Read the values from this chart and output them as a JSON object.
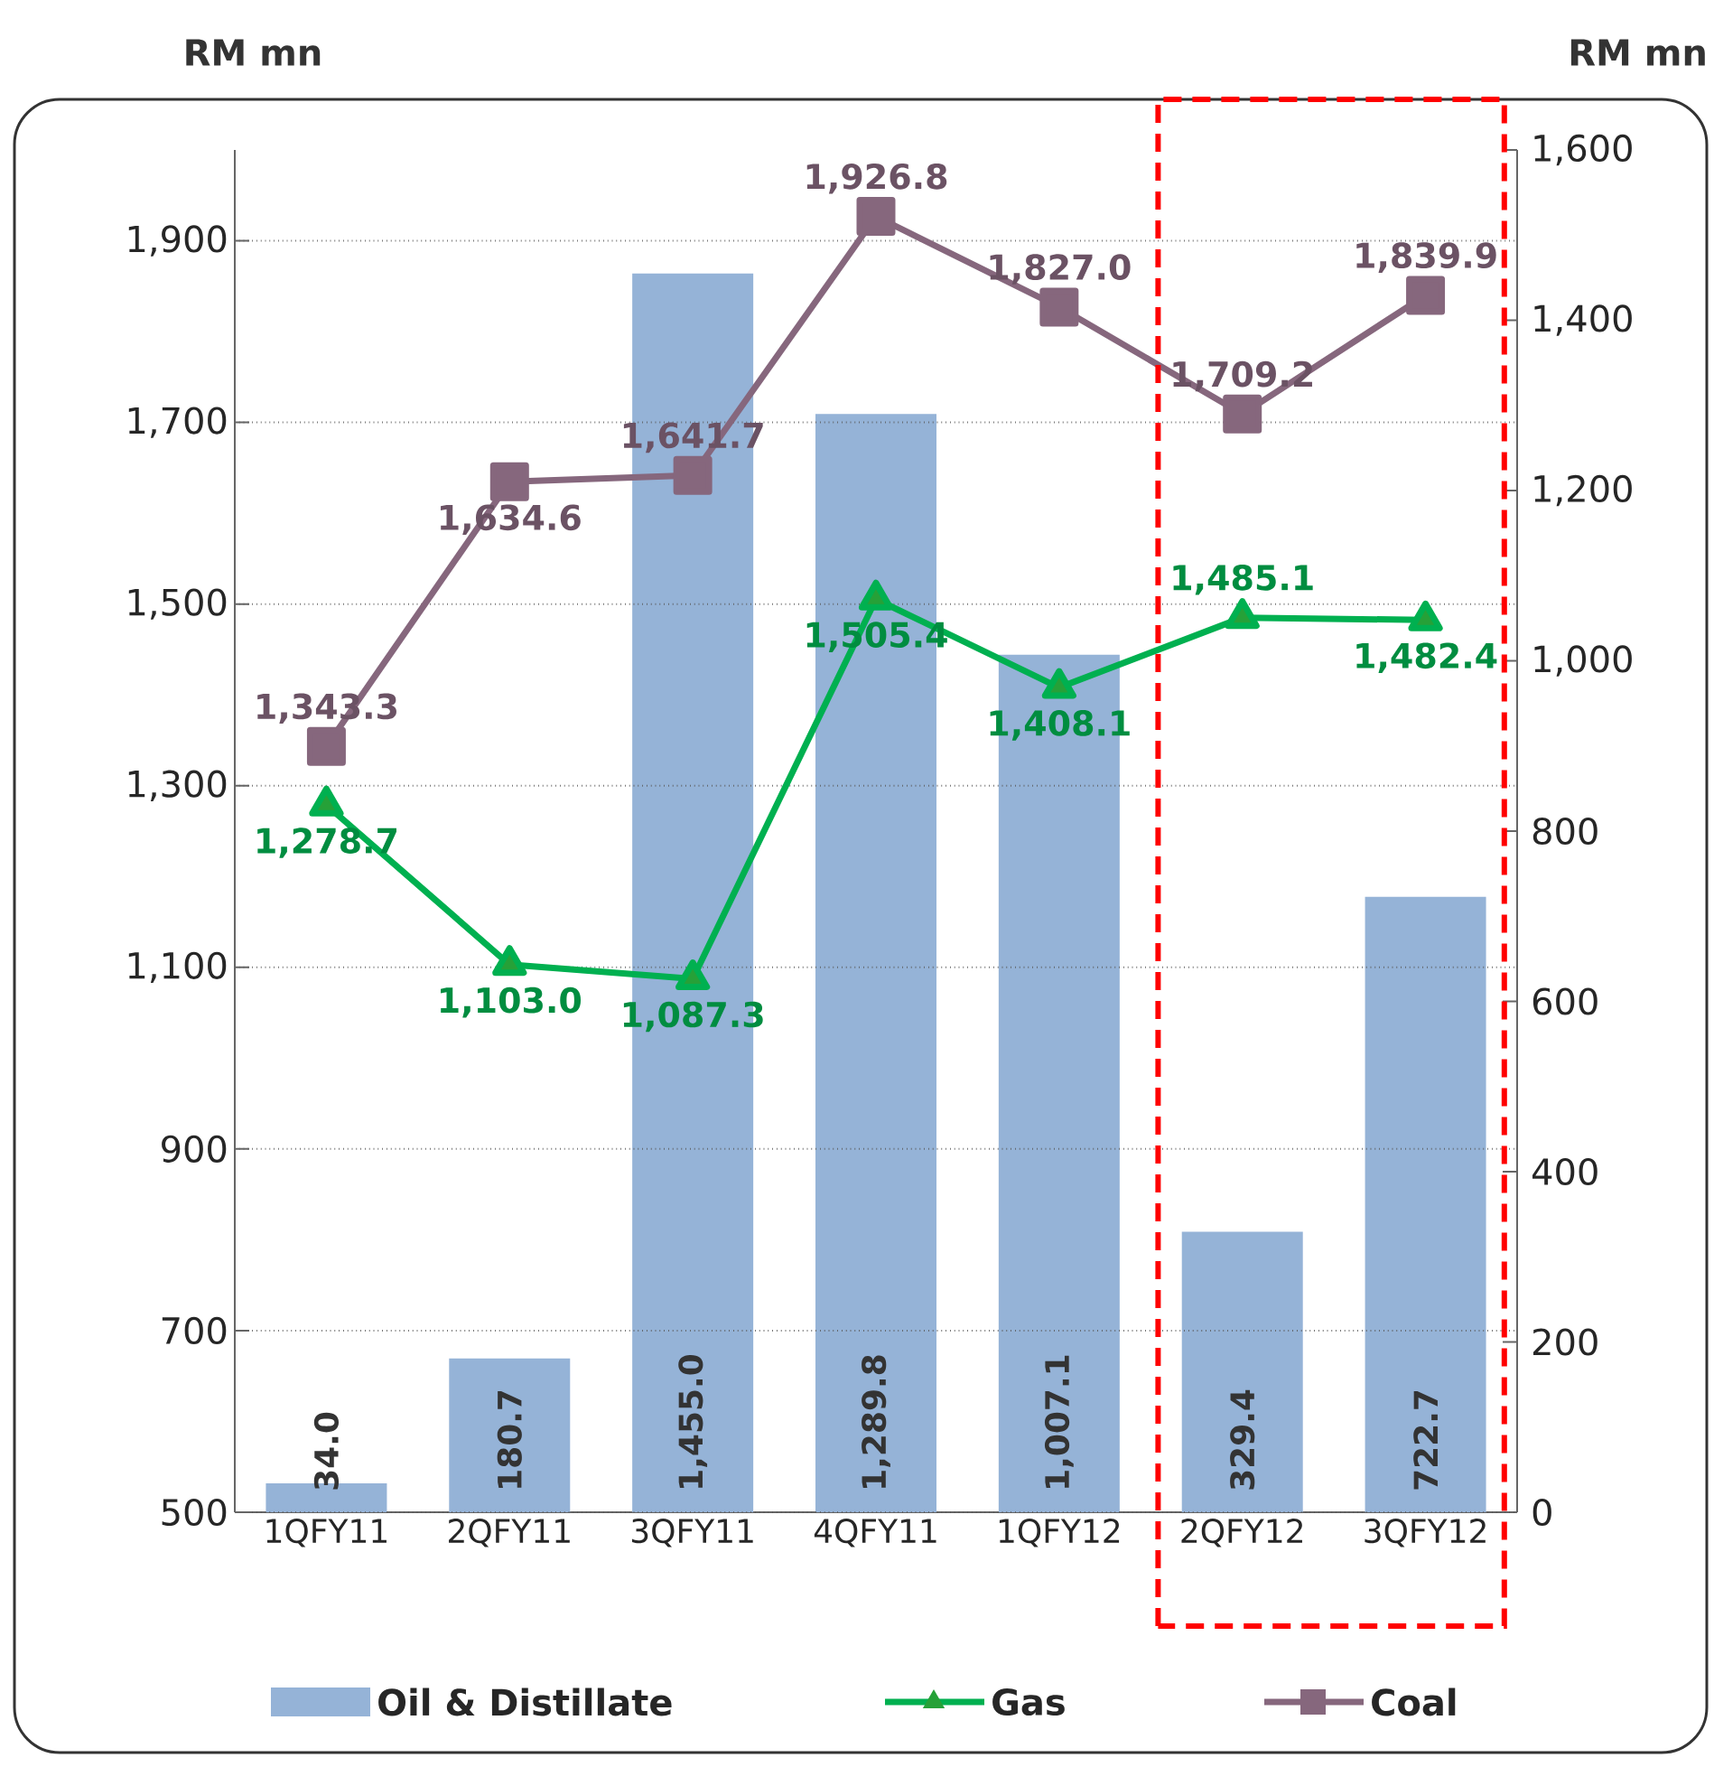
{
  "chart_data": {
    "type": "bar",
    "ylabel": "RM mn",
    "y2label": "RM mn",
    "categories": [
      "1QFY11",
      "2QFY11",
      "3QFY11",
      "4QFY11",
      "1QFY12",
      "2QFY12",
      "3QFY12"
    ],
    "series": [
      {
        "name": "Oil & Distillate",
        "axis": "y2",
        "color": "#95b3d7",
        "values": [
          34.0,
          180.7,
          1455.0,
          1289.8,
          1007.1,
          329.4,
          722.7
        ],
        "value_labels": [
          "34.0",
          "180.7",
          "1,455.0",
          "1,289.8",
          "1,007.1",
          "329.4",
          "722.7"
        ]
      },
      {
        "name": "Gas",
        "type": "line",
        "axis": "y",
        "color": "#00b050",
        "marker": "triangle",
        "values": [
          1278.7,
          1103.0,
          1087.3,
          1505.4,
          1408.1,
          1485.1,
          1482.4
        ],
        "value_labels": [
          "1,278.7",
          "1,103.0",
          "1,087.3",
          "1,505.4",
          "1,408.1",
          "1,485.1",
          "1,482.4"
        ]
      },
      {
        "name": "Coal",
        "type": "line",
        "axis": "y",
        "color": "#86677d",
        "marker": "square",
        "values": [
          1343.3,
          1634.6,
          1641.7,
          1926.8,
          1827.0,
          1709.2,
          1839.9
        ],
        "value_labels": [
          "1,343.3",
          "1,634.6",
          "1,641.7",
          "1,926.8",
          "1,827.0",
          "1,709.2",
          "1,839.9"
        ]
      }
    ],
    "ylim": [
      500,
      2000
    ],
    "yticks": [
      500,
      700,
      900,
      {
        "value": 1100,
        "label": "1,100"
      },
      {
        "value": 1300,
        "label": "1,300"
      },
      {
        "value": 1500,
        "label": "1,500"
      },
      {
        "value": 1700,
        "label": "1,700"
      },
      {
        "value": 1900,
        "label": "1,900"
      }
    ],
    "y2lim": [
      0,
      1600
    ],
    "y2ticks": [
      0,
      200,
      400,
      600,
      800,
      {
        "value": 1000,
        "label": "1,000"
      },
      {
        "value": 1200,
        "label": "1,200"
      },
      {
        "value": 1400,
        "label": "1,400"
      },
      {
        "value": 1600,
        "label": "1,600"
      }
    ],
    "grid": "y",
    "legend": "bottom"
  }
}
